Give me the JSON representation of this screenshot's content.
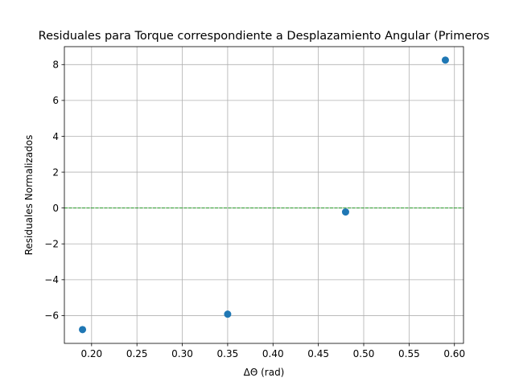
{
  "chart_data": {
    "type": "scatter",
    "title": "Residuales para Torque correspondiente a Desplazamiento Angular (Primeros",
    "xlabel": "ΔΘ (rad)",
    "ylabel": "Residuales Normalizados",
    "xlim": [
      0.17,
      0.61
    ],
    "ylim": [
      -7.55,
      9.0
    ],
    "xticks": [
      0.2,
      0.25,
      0.3,
      0.35,
      0.4,
      0.45,
      0.5,
      0.55,
      0.6
    ],
    "xtick_labels": [
      "0.20",
      "0.25",
      "0.30",
      "0.35",
      "0.40",
      "0.45",
      "0.50",
      "0.55",
      "0.60"
    ],
    "yticks": [
      -6,
      -4,
      -2,
      0,
      2,
      4,
      6,
      8
    ],
    "ytick_labels": [
      "−6",
      "−4",
      "−2",
      "0",
      "2",
      "4",
      "6",
      "8"
    ],
    "grid": true,
    "legend": "none",
    "series": [
      {
        "x": [
          0.19,
          0.35,
          0.48,
          0.59
        ],
        "y": [
          -6.78,
          -5.92,
          -0.22,
          8.25
        ],
        "color": "#1f77b4"
      }
    ],
    "reference_line": {
      "y": 0,
      "style": "dashed",
      "color": "#2ca02c"
    }
  }
}
